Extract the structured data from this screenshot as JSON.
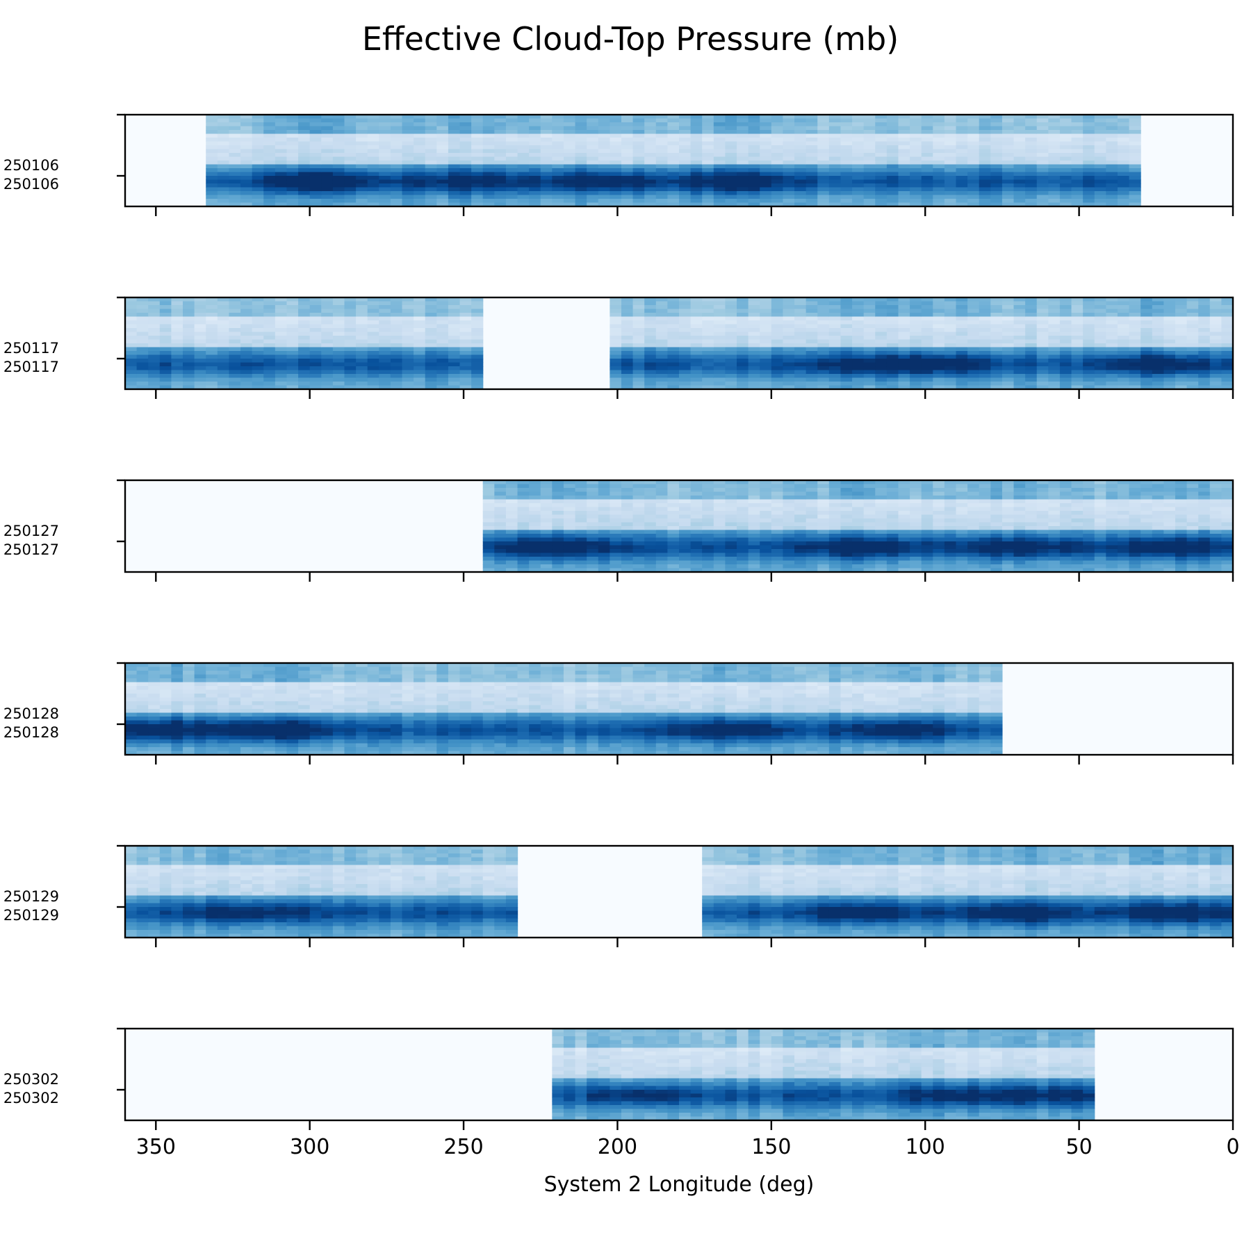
{
  "chart_data": {
    "type": "heatmap",
    "title": "Effective Cloud-Top Pressure (mb)",
    "xlabel": "System 2 Longitude (deg)",
    "xlim": [
      360,
      0
    ],
    "xticks": [
      350,
      300,
      250,
      200,
      150,
      100,
      50,
      0
    ],
    "colormap": "Blues",
    "background_color": "#f7fbff",
    "panels": [
      {
        "id": "p1",
        "label_top": "250106",
        "label_bottom": "250106",
        "coverage": [
          [
            333,
            30
          ]
        ],
        "seed": 11,
        "dark_spots": [
          [
            296,
            0.95
          ],
          [
            205,
            0.8
          ],
          [
            162,
            0.9
          ],
          [
            250,
            0.7
          ]
        ]
      },
      {
        "id": "p2",
        "label_top": "250117",
        "label_bottom": "250117",
        "coverage": [
          [
            360,
            243
          ],
          [
            203,
            0
          ]
        ],
        "seed": 23,
        "dark_spots": [
          [
            95,
            0.8
          ],
          [
            25,
            0.85
          ],
          [
            120,
            0.6
          ]
        ]
      },
      {
        "id": "p3",
        "label_top": "250127",
        "label_bottom": "250127",
        "coverage": [
          [
            245,
            0
          ]
        ],
        "seed": 37,
        "dark_spots": [
          [
            222,
            0.95
          ],
          [
            120,
            0.9
          ],
          [
            70,
            0.8
          ],
          [
            20,
            0.85
          ]
        ]
      },
      {
        "id": "p4",
        "label_top": "250128",
        "label_bottom": "250128",
        "coverage": [
          [
            360,
            75
          ]
        ],
        "seed": 41,
        "dark_spots": [
          [
            310,
            1.0
          ],
          [
            350,
            0.9
          ],
          [
            165,
            0.8
          ],
          [
            110,
            0.85
          ]
        ]
      },
      {
        "id": "p5",
        "label_top": "250129",
        "label_bottom": "250129",
        "coverage": [
          [
            360,
            232
          ],
          [
            174,
            0
          ]
        ],
        "seed": 53,
        "dark_spots": [
          [
            120,
            0.8
          ],
          [
            70,
            0.9
          ],
          [
            20,
            0.85
          ],
          [
            320,
            0.7
          ]
        ]
      },
      {
        "id": "p6",
        "label_top": "250302",
        "label_bottom": "250302",
        "coverage": [
          [
            220,
            44
          ]
        ],
        "seed": 67,
        "dark_spots": [
          [
            190,
            0.6
          ],
          [
            90,
            0.6
          ],
          [
            60,
            0.55
          ]
        ]
      }
    ]
  }
}
